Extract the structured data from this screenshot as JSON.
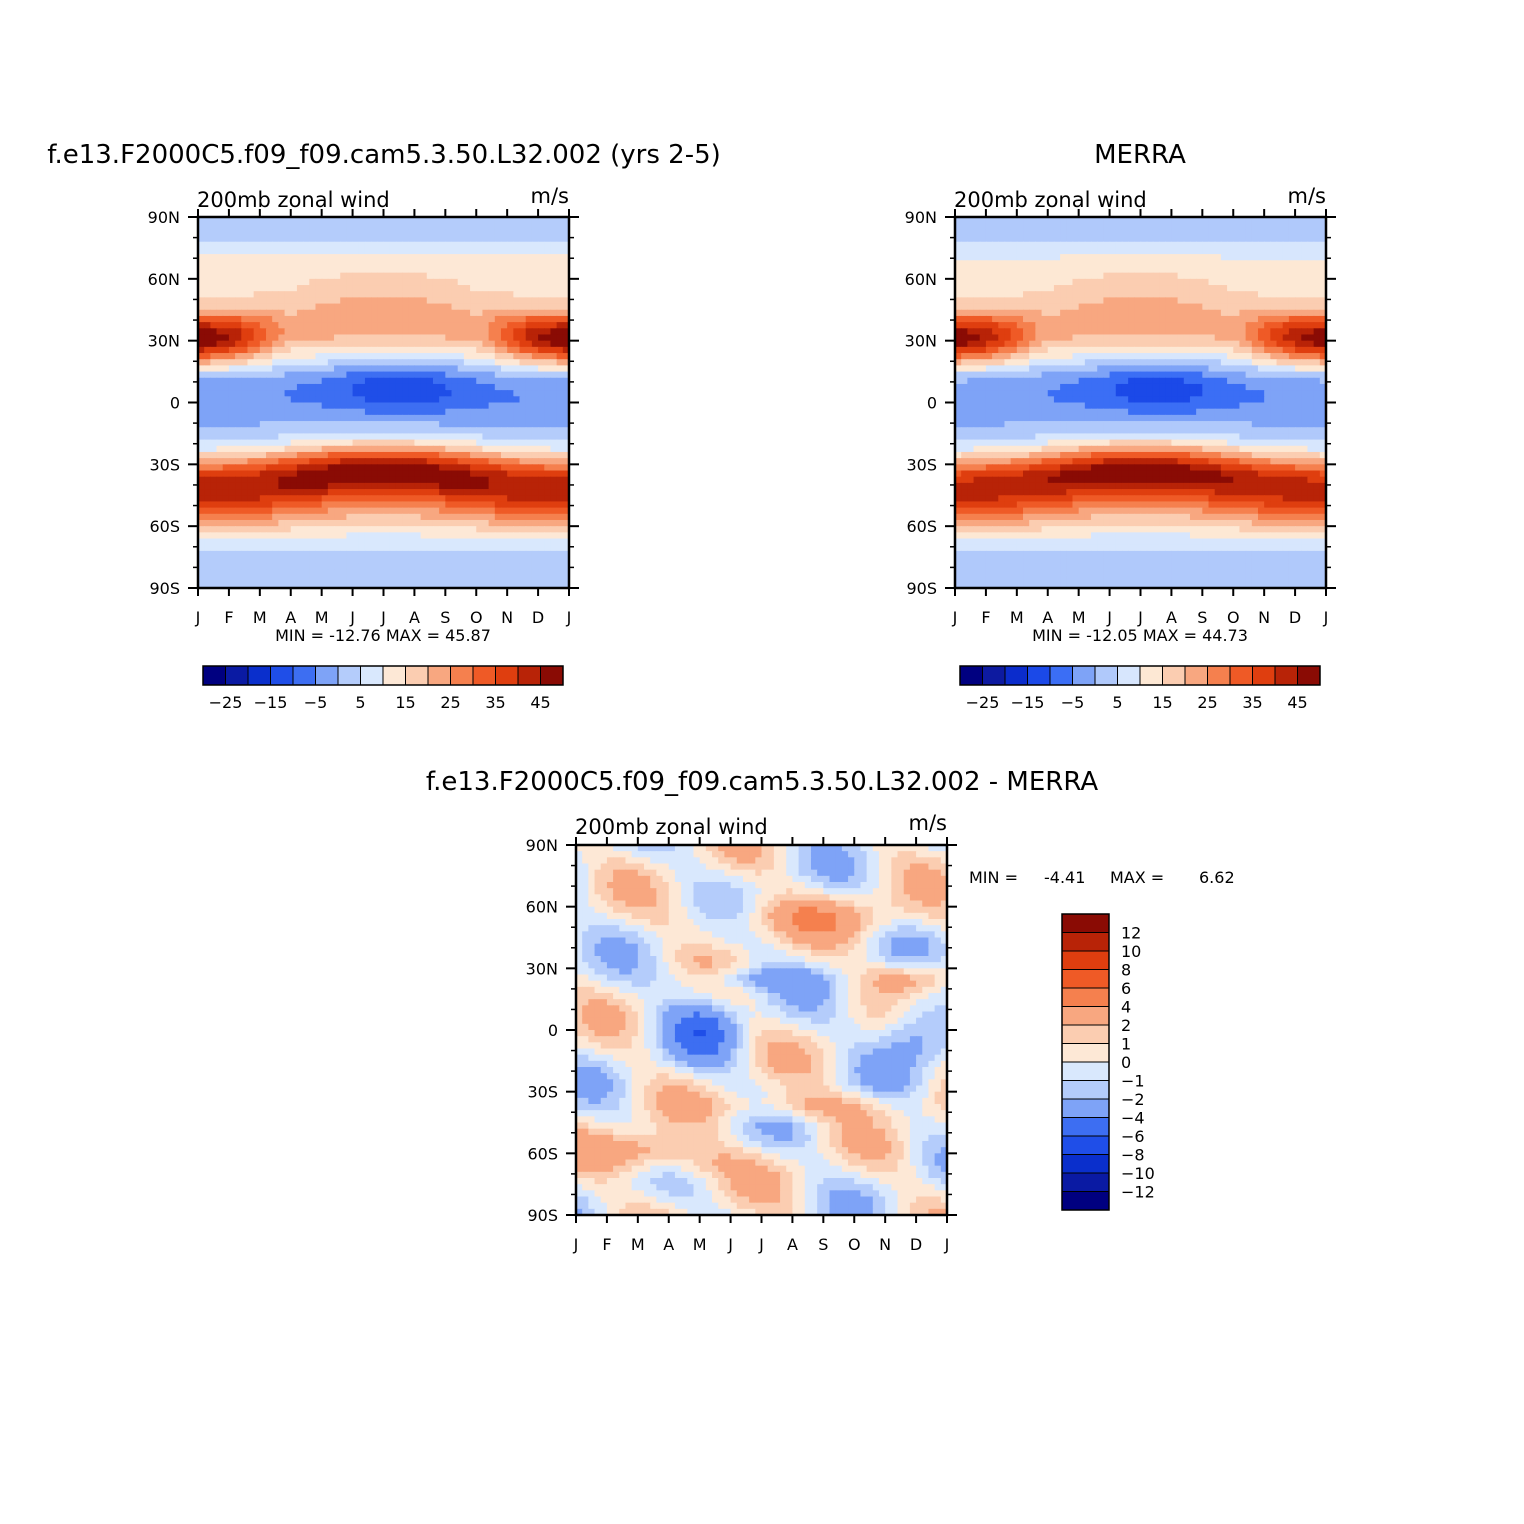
{
  "chart_data": [
    {
      "type": "heatmap",
      "title": "f.e13.F2000C5.f09_f09.cam5.3.50.L32.002 (yrs 2-5)",
      "subtitle_left": "200mb zonal wind",
      "subtitle_right": "m/s",
      "x_labels": [
        "J",
        "F",
        "M",
        "A",
        "M",
        "J",
        "J",
        "A",
        "S",
        "O",
        "N",
        "D",
        "J"
      ],
      "y_labels": [
        "90N",
        "60N",
        "30N",
        "0",
        "30S",
        "60S",
        "90S"
      ],
      "y_values": [
        90,
        60,
        30,
        0,
        -30,
        -60,
        -90
      ],
      "minmax_text": "MIN = -12.76 MAX = 45.87",
      "min": -12.76,
      "max": 45.87,
      "legend_labels": [
        "-25",
        "-15",
        "-5",
        "5",
        "15",
        "25",
        "35",
        "45"
      ],
      "levels": [
        -30,
        -25,
        -20,
        -15,
        -10,
        -5,
        0,
        5,
        10,
        15,
        20,
        25,
        30,
        35,
        40,
        45
      ],
      "field": {
        "nh_jet": {
          "lat": 30,
          "amplitude": 45.87,
          "winter_lon_months": [
            1,
            11.6
          ]
        },
        "sh_jet": {
          "lat": -33,
          "amplitude": 44,
          "peak_month": 6.3
        },
        "tropical_min": {
          "lat": 6,
          "amplitude": -12.76,
          "peak_month": 6.5
        }
      }
    },
    {
      "type": "heatmap",
      "title": "MERRA",
      "subtitle_left": "200mb zonal wind",
      "subtitle_right": "m/s",
      "x_labels": [
        "J",
        "F",
        "M",
        "A",
        "M",
        "J",
        "J",
        "A",
        "S",
        "O",
        "N",
        "D",
        "J"
      ],
      "y_labels": [
        "90N",
        "60N",
        "30N",
        "0",
        "30S",
        "60S",
        "90S"
      ],
      "y_values": [
        90,
        60,
        30,
        0,
        -30,
        -60,
        -90
      ],
      "minmax_text": "MIN = -12.05 MAX = 44.73",
      "min": -12.05,
      "max": 44.73,
      "legend_labels": [
        "-25",
        "-15",
        "-5",
        "5",
        "15",
        "25",
        "35",
        "45"
      ],
      "levels": [
        -30,
        -25,
        -20,
        -15,
        -10,
        -5,
        0,
        5,
        10,
        15,
        20,
        25,
        30,
        35,
        40,
        45
      ]
    },
    {
      "type": "heatmap",
      "title": "f.e13.F2000C5.f09_f09.cam5.3.50.L32.002 - MERRA",
      "subtitle_left": "200mb zonal wind",
      "subtitle_right": "m/s",
      "x_labels": [
        "J",
        "F",
        "M",
        "A",
        "M",
        "J",
        "J",
        "A",
        "S",
        "O",
        "N",
        "D",
        "J"
      ],
      "y_labels": [
        "90N",
        "60N",
        "30N",
        "0",
        "30S",
        "60S",
        "90S"
      ],
      "y_values": [
        90,
        60,
        30,
        0,
        -30,
        -60,
        -90
      ],
      "minmax_label_min": "MIN =",
      "minmax_min": "-4.41",
      "minmax_label_max": "MAX =",
      "minmax_max": "6.62",
      "min": -4.41,
      "max": 6.62,
      "legend_labels": [
        "12",
        "10",
        "8",
        "6",
        "4",
        "2",
        "1",
        "0",
        "-1",
        "-2",
        "-4",
        "-6",
        "-8",
        "-10",
        "-12"
      ],
      "levels": [
        -12,
        -10,
        -8,
        -6,
        -4,
        -2,
        -1,
        0,
        1,
        2,
        4,
        6,
        8,
        10,
        12
      ]
    }
  ],
  "colors": {
    "div16": [
      "#000080",
      "#0a1aa3",
      "#0a2fcc",
      "#1f4ee8",
      "#3d6ef2",
      "#7ea3f7",
      "#b4ccfb",
      "#d9e8fd",
      "#fde8d6",
      "#fbcdb1",
      "#f8a780",
      "#f5804e",
      "#ef5a26",
      "#df3e0f",
      "#b82307",
      "#8a0b04"
    ],
    "div16b": [
      "#000080",
      "#0d1aa0",
      "#0b2ccc",
      "#1b49e8",
      "#3b6ef5",
      "#7ea3f7",
      "#b0c9fb",
      "#d7e6fd",
      "#fde8d4",
      "#fbcdb1",
      "#f8a780",
      "#f5804e",
      "#ef5a26",
      "#df3e0f",
      "#b82307",
      "#8a0b04"
    ]
  }
}
